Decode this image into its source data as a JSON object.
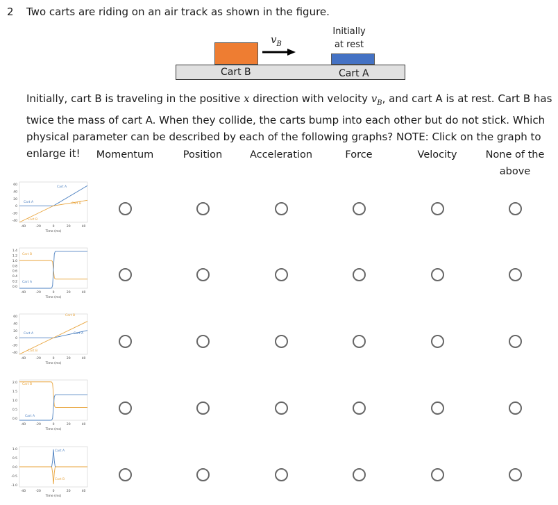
{
  "question": {
    "number": "2",
    "title": "Two carts are riding on an air track as shown in the figure."
  },
  "figure": {
    "cart_b_label": "Cart B",
    "cart_a_label": "Cart A",
    "velocity_symbol": "v",
    "velocity_subscript": "B",
    "initial_line1": "Initially",
    "initial_line2": "at rest",
    "colors": {
      "cart_b": "#ee7d32",
      "cart_a": "#4472c4",
      "track": "#e0e0e0"
    }
  },
  "paragraph": {
    "t1": "Initially, cart B is traveling in the positive ",
    "x": "x",
    "t2": " direction with velocity ",
    "v": "v",
    "vsub": "B",
    "t3": ", and cart A is at rest. Cart B has twice the mass of cart A. When they collide, the carts bump into each other but do not stick. Which physical parameter can be described by each of the following graphs? NOTE: Click on the graph to enlarge it!"
  },
  "columns": [
    "Momentum",
    "Position",
    "Acceleration",
    "Force",
    "Velocity",
    "None of the above"
  ],
  "graph_common": {
    "x_ticks": [
      "-40",
      "-20",
      "0",
      "20",
      "40"
    ],
    "x_label": "Time (ms)",
    "colors": {
      "cart_a": "#4a7fc0",
      "cart_b": "#e8a33a"
    }
  },
  "graphs": [
    {
      "y_ticks": [
        "60",
        "40",
        "20",
        "0",
        "-20",
        "-40"
      ],
      "labels": {
        "cart_a_top": "Cart A",
        "cart_b_top": "Cart B",
        "cart_a_left": "Cart A",
        "cart_b_bottom": "Cart B"
      },
      "chart_data": {
        "type": "line",
        "x": [
          -45,
          0,
          45
        ],
        "xlim": [
          -45,
          45
        ],
        "ylim": [
          -45,
          65
        ],
        "series": [
          {
            "name": "Cart A",
            "values": [
              0,
              0,
              55
            ]
          },
          {
            "name": "Cart B",
            "values": [
              -45,
              0,
              15
            ]
          }
        ]
      }
    },
    {
      "y_ticks": [
        "1.4",
        "1.2",
        "1.0",
        "0.8",
        "0.6",
        "0.4",
        "0.2",
        "0.0"
      ],
      "labels": {
        "cart_b": "Cart B",
        "cart_a": "Cart A"
      },
      "chart_data": {
        "type": "line",
        "x": [
          -45,
          -2,
          0,
          2,
          45
        ],
        "xlim": [
          -45,
          45
        ],
        "ylim": [
          0,
          1.45
        ],
        "series": [
          {
            "name": "Cart B",
            "values": [
              1.0,
              0.97,
              0.67,
              0.36,
              0.33
            ]
          },
          {
            "name": "Cart A",
            "values": [
              0.0,
              0.03,
              0.67,
              1.3,
              1.33
            ]
          }
        ]
      }
    },
    {
      "y_ticks": [
        "60",
        "40",
        "20",
        "0",
        "-20",
        "-40"
      ],
      "labels": {
        "cart_b_top": "Cart B",
        "cart_a_right": "Cart A",
        "cart_a_left": "Cart A",
        "cart_b_bottom": "Cart B"
      },
      "chart_data": {
        "type": "line",
        "x": [
          -45,
          0,
          45
        ],
        "xlim": [
          -45,
          45
        ],
        "ylim": [
          -45,
          65
        ],
        "series": [
          {
            "name": "Cart A",
            "values": [
              0,
              0,
              20
            ]
          },
          {
            "name": "Cart B",
            "values": [
              -45,
              0,
              45
            ]
          }
        ]
      }
    },
    {
      "y_ticks": [
        "2.0",
        "1.5",
        "1.0",
        "0.5",
        "0.0"
      ],
      "labels": {
        "cart_b": "Cart B",
        "cart_a": "Cart A"
      },
      "chart_data": {
        "type": "line",
        "x": [
          -45,
          -2,
          0,
          2,
          45
        ],
        "xlim": [
          -45,
          45
        ],
        "ylim": [
          0,
          2.1
        ],
        "series": [
          {
            "name": "Cart B",
            "values": [
              2.0,
              1.95,
              1.35,
              0.7,
              0.67
            ]
          },
          {
            "name": "Cart A",
            "values": [
              0.0,
              0.05,
              0.67,
              1.3,
              1.33
            ]
          }
        ]
      }
    },
    {
      "y_ticks": [
        "1.0",
        "0.5",
        "0.0",
        "-0.5",
        "-1.0"
      ],
      "labels": {
        "cart_a": "Cart A",
        "cart_b": "Cart B"
      },
      "chart_data": {
        "type": "line",
        "x": [
          -45,
          -2,
          0,
          2,
          45
        ],
        "xlim": [
          -45,
          45
        ],
        "ylim": [
          -1.1,
          1.1
        ],
        "series": [
          {
            "name": "Cart A",
            "values": [
              0,
              0,
              0.95,
              0,
              0
            ]
          },
          {
            "name": "Cart B",
            "values": [
              0,
              0,
              -0.95,
              0,
              0
            ]
          }
        ]
      }
    }
  ]
}
